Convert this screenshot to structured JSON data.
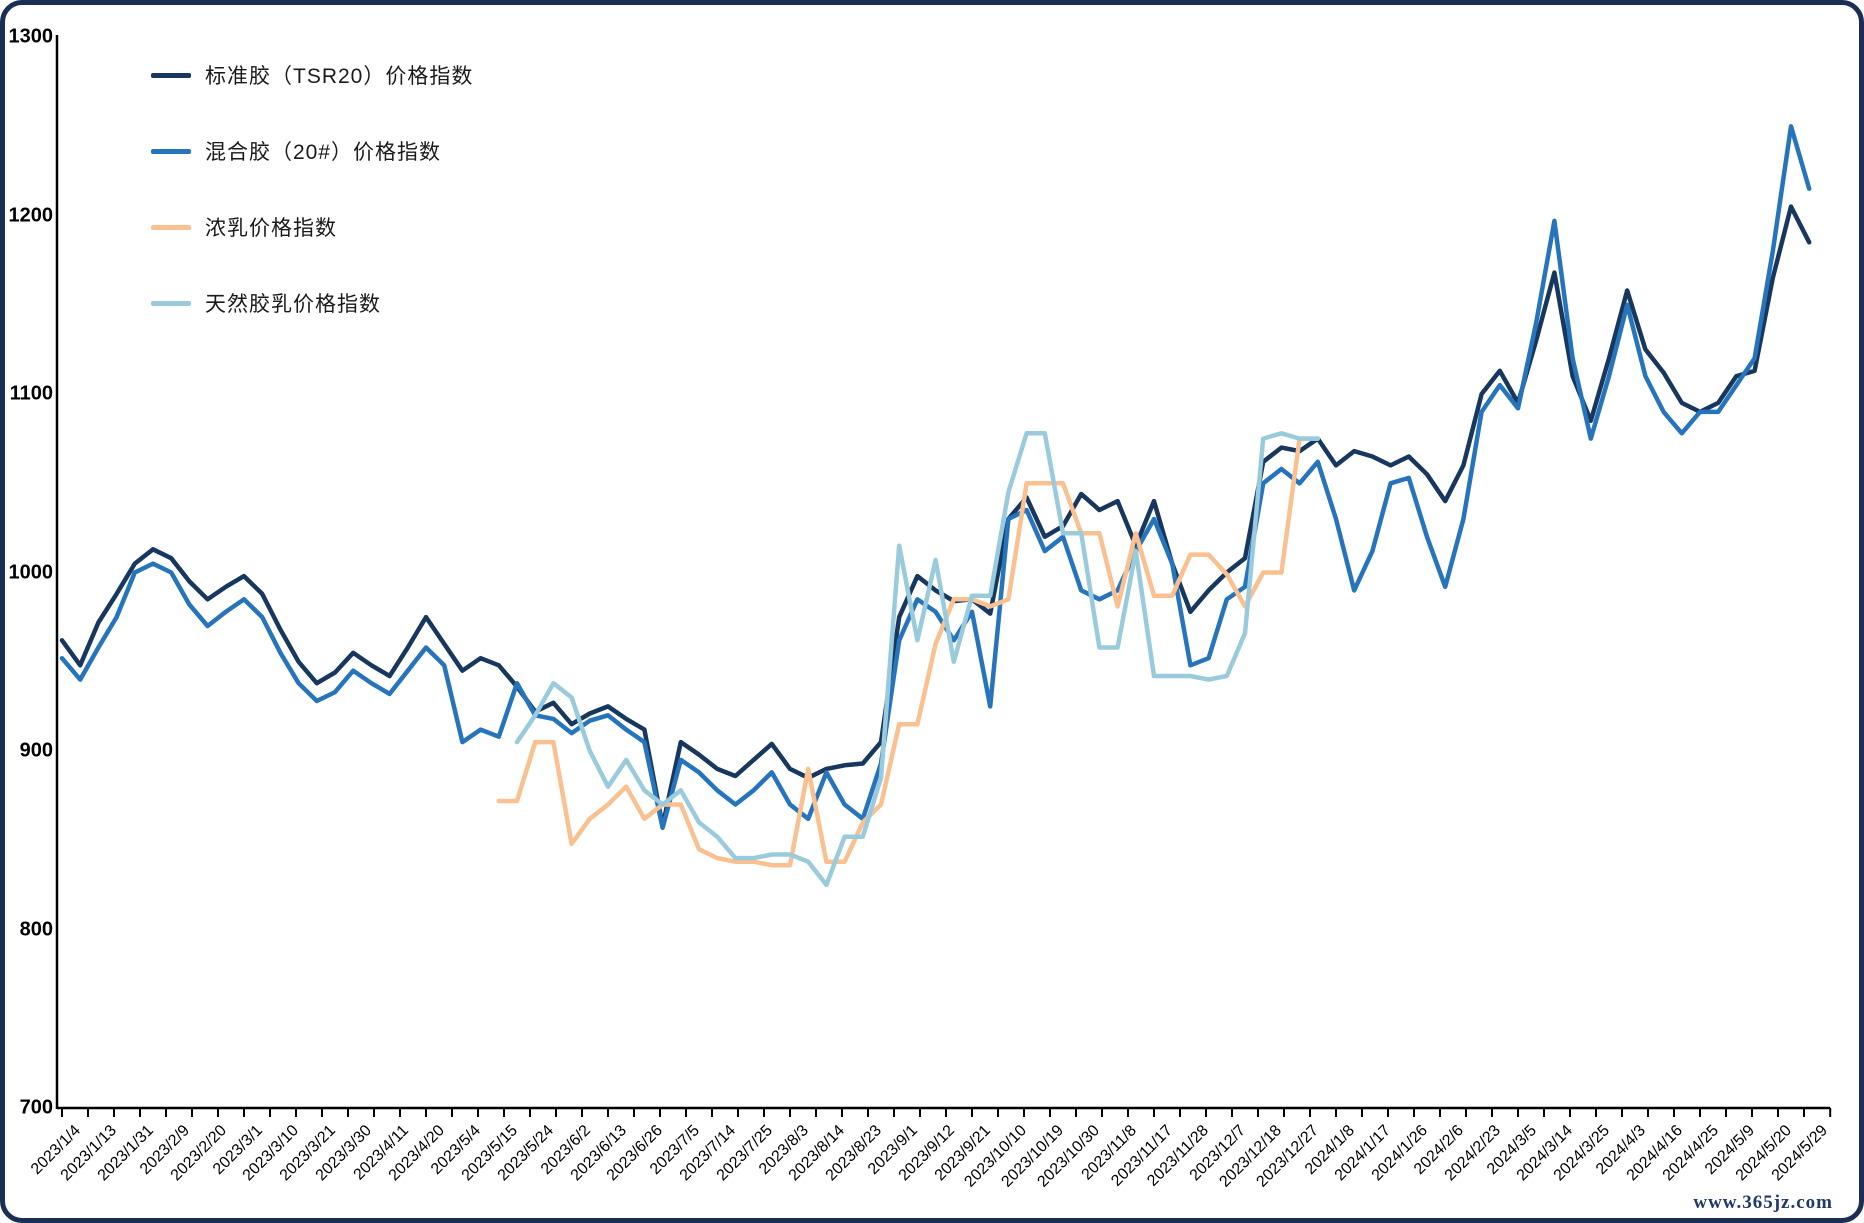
{
  "chart_data": {
    "type": "line",
    "title": "",
    "xlabel": "",
    "ylabel": "",
    "ylim": [
      700,
      1300
    ],
    "y_ticks": [
      1300,
      1200,
      1100,
      1000,
      900,
      800,
      700
    ],
    "grid": false,
    "legend_position": "top-left",
    "samples_per_label_interval": 2,
    "x_labels": [
      "2023/1/4",
      "2023/1/13",
      "2023/1/31",
      "2023/2/9",
      "2023/2/20",
      "2023/3/1",
      "2023/3/10",
      "2023/3/21",
      "2023/3/30",
      "2023/4/11",
      "2023/4/20",
      "2023/5/4",
      "2023/5/15",
      "2023/5/24",
      "2023/6/2",
      "2023/6/13",
      "2023/6/26",
      "2023/7/5",
      "2023/7/14",
      "2023/7/25",
      "2023/8/3",
      "2023/8/14",
      "2023/8/23",
      "2023/9/1",
      "2023/9/12",
      "2023/9/21",
      "2023/10/10",
      "2023/10/19",
      "2023/10/30",
      "2023/11/8",
      "2023/11/17",
      "2023/11/28",
      "2023/12/7",
      "2023/12/18",
      "2023/12/27",
      "2024/1/8",
      "2024/1/17",
      "2024/1/26",
      "2024/2/6",
      "2024/2/23",
      "2024/3/5",
      "2024/3/14",
      "2024/3/25",
      "2024/4/3",
      "2024/4/16",
      "2024/4/25",
      "2024/5/9",
      "2024/5/20",
      "2024/5/29"
    ],
    "series": [
      {
        "name": "标准胶（TSR20）价格指数",
        "color": "#17375E",
        "values": [
          962,
          948,
          972,
          988,
          1005,
          1013,
          1008,
          995,
          985,
          992,
          998,
          988,
          968,
          950,
          938,
          944,
          955,
          948,
          942,
          958,
          975,
          960,
          945,
          952,
          948,
          936,
          922,
          927,
          915,
          921,
          925,
          918,
          912,
          858,
          905,
          898,
          890,
          886,
          895,
          904,
          890,
          885,
          890,
          892,
          893,
          905,
          975,
          998,
          990,
          984,
          985,
          977,
          1030,
          1042,
          1020,
          1026,
          1044,
          1035,
          1040,
          1015,
          1040,
          1005,
          978,
          990,
          1000,
          1008,
          1062,
          1070,
          1068,
          1075,
          1060,
          1068,
          1065,
          1060,
          1065,
          1055,
          1040,
          1060,
          1100,
          1113,
          1095,
          1130,
          1168,
          1110,
          1085,
          1120,
          1158,
          1125,
          1112,
          1095,
          1090,
          1095,
          1110,
          1113,
          1165,
          1205,
          1185
        ]
      },
      {
        "name": "混合胶（20#）价格指数",
        "color": "#2574BC",
        "values": [
          952,
          940,
          958,
          975,
          1000,
          1005,
          1000,
          982,
          970,
          978,
          985,
          975,
          955,
          938,
          928,
          933,
          945,
          938,
          932,
          945,
          958,
          948,
          905,
          912,
          908,
          938,
          920,
          918,
          910,
          917,
          920,
          912,
          905,
          857,
          895,
          888,
          878,
          870,
          878,
          888,
          870,
          862,
          888,
          870,
          862,
          893,
          962,
          985,
          978,
          962,
          978,
          925,
          1030,
          1035,
          1012,
          1020,
          990,
          985,
          990,
          1012,
          1030,
          1005,
          948,
          952,
          985,
          992,
          1050,
          1058,
          1050,
          1062,
          1030,
          990,
          1012,
          1050,
          1053,
          1020,
          992,
          1030,
          1090,
          1105,
          1092,
          1140,
          1197,
          1120,
          1075,
          1110,
          1150,
          1110,
          1090,
          1078,
          1090,
          1090,
          1105,
          1120,
          1180,
          1250,
          1215
        ]
      },
      {
        "name": "浓乳价格指数",
        "color": "#FAC090",
        "values": [
          null,
          null,
          null,
          null,
          null,
          null,
          null,
          null,
          null,
          null,
          null,
          null,
          null,
          null,
          null,
          null,
          null,
          null,
          null,
          null,
          null,
          null,
          null,
          null,
          872,
          872,
          905,
          905,
          848,
          862,
          870,
          880,
          862,
          870,
          870,
          845,
          840,
          838,
          838,
          836,
          836,
          890,
          838,
          838,
          860,
          870,
          915,
          915,
          960,
          985,
          985,
          981,
          985,
          1050,
          1050,
          1050,
          1022,
          1022,
          981,
          1022,
          987,
          987,
          1010,
          1010,
          999,
          981,
          1000,
          1000,
          1075,
          1075,
          null,
          null,
          null,
          null,
          null,
          null,
          null,
          null,
          null,
          null,
          null,
          null,
          null,
          null,
          null,
          null,
          null,
          null,
          null,
          null,
          null,
          null,
          null,
          null,
          null,
          null,
          null
        ]
      },
      {
        "name": "天然胶乳价格指数",
        "color": "#99CBDD",
        "values": [
          null,
          null,
          null,
          null,
          null,
          null,
          null,
          null,
          null,
          null,
          null,
          null,
          null,
          null,
          null,
          null,
          null,
          null,
          null,
          null,
          null,
          null,
          null,
          null,
          null,
          905,
          920,
          938,
          930,
          900,
          880,
          895,
          878,
          870,
          878,
          860,
          852,
          840,
          840,
          842,
          842,
          838,
          825,
          852,
          852,
          885,
          1015,
          962,
          1007,
          950,
          987,
          987,
          1045,
          1078,
          1078,
          1022,
          1022,
          958,
          958,
          1012,
          942,
          942,
          942,
          940,
          942,
          966,
          1075,
          1078,
          1075,
          1075,
          null,
          null,
          null,
          null,
          null,
          null,
          null,
          null,
          null,
          null,
          null,
          null,
          null,
          null,
          null,
          null,
          null,
          null,
          null,
          null,
          null,
          null,
          null,
          null,
          null,
          null,
          null
        ]
      }
    ]
  },
  "watermark": {
    "text": "www.365jz.com"
  }
}
